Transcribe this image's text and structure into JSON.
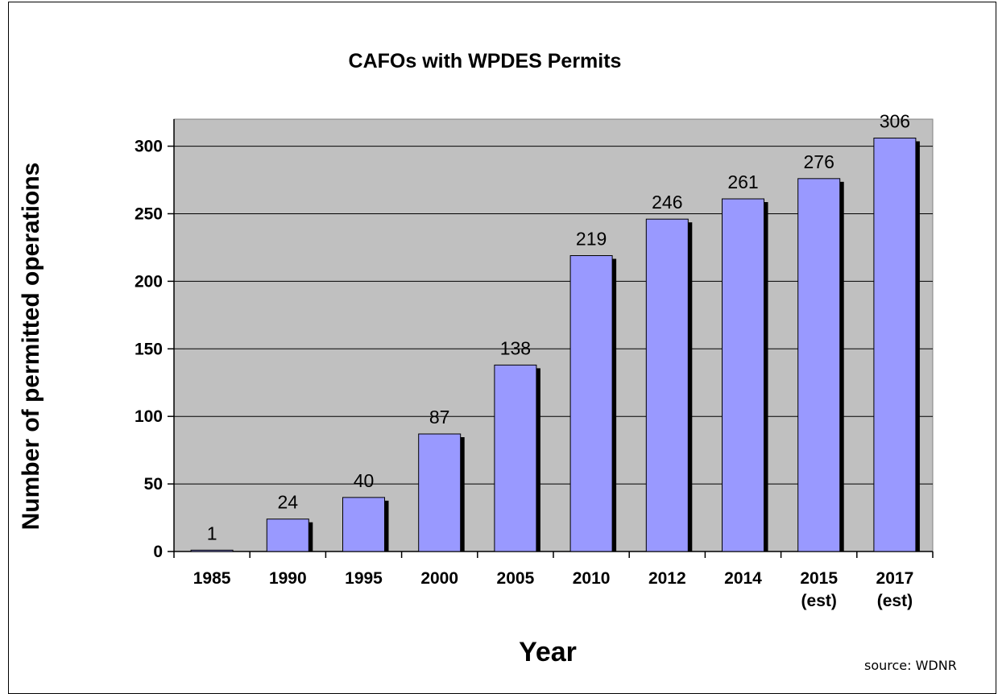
{
  "chart_data": {
    "type": "bar",
    "title": "CAFOs with WPDES Permits",
    "xlabel": "Year",
    "ylabel": "Number of permitted operations",
    "categories": [
      [
        "1985"
      ],
      [
        "1990"
      ],
      [
        "1995"
      ],
      [
        "2000"
      ],
      [
        "2005"
      ],
      [
        "2010"
      ],
      [
        "2012"
      ],
      [
        "2014"
      ],
      [
        "2015",
        "(est)"
      ],
      [
        "2017",
        "(est)"
      ]
    ],
    "values": [
      1,
      24,
      40,
      87,
      138,
      219,
      246,
      261,
      276,
      306
    ],
    "ylim": [
      0,
      320
    ],
    "yticks": [
      0,
      50,
      100,
      150,
      200,
      250,
      300
    ],
    "grid": true,
    "colors": {
      "bar": "#9999ff",
      "plot_background": "#c0c0c0",
      "bar_shadow": "#000000"
    }
  },
  "source": "source: WDNR"
}
